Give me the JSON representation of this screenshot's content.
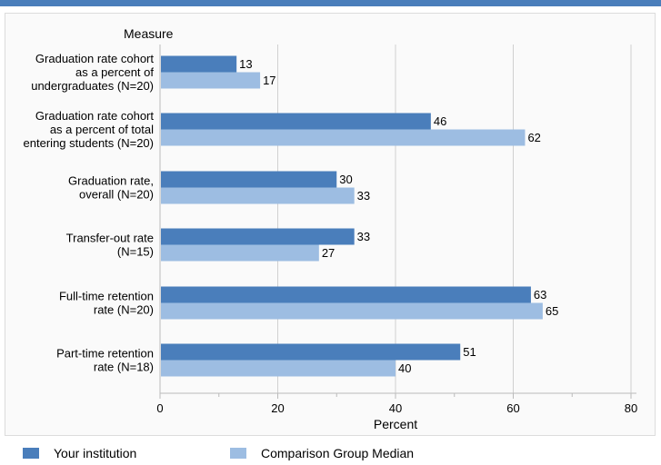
{
  "chart_data": {
    "type": "bar",
    "orientation": "horizontal",
    "title": "",
    "category_axis_label": "Measure",
    "xlabel": "Percent",
    "xlim": [
      0,
      80
    ],
    "xticks": [
      "0",
      "20",
      "40",
      "60",
      "80"
    ],
    "grid": true,
    "legend_position": "bottom",
    "categories": [
      [
        "Graduation rate cohort",
        "as a percent of",
        "undergraduates (N=20)"
      ],
      [
        "Graduation rate cohort",
        "as a percent of total",
        "entering students (N=20)"
      ],
      [
        "Graduation rate,",
        "overall (N=20)"
      ],
      [
        "Transfer-out rate",
        "(N=15)"
      ],
      [
        "Full-time retention",
        "rate (N=20)"
      ],
      [
        "Part-time retention",
        "rate (N=18)"
      ]
    ],
    "series": [
      {
        "name": "Your institution",
        "color": "#4a7ebb",
        "values": [
          13,
          46,
          30,
          33,
          63,
          51
        ]
      },
      {
        "name": "Comparison Group Median",
        "color": "#9dbde2",
        "values": [
          17,
          62,
          33,
          27,
          65,
          40
        ]
      }
    ]
  }
}
